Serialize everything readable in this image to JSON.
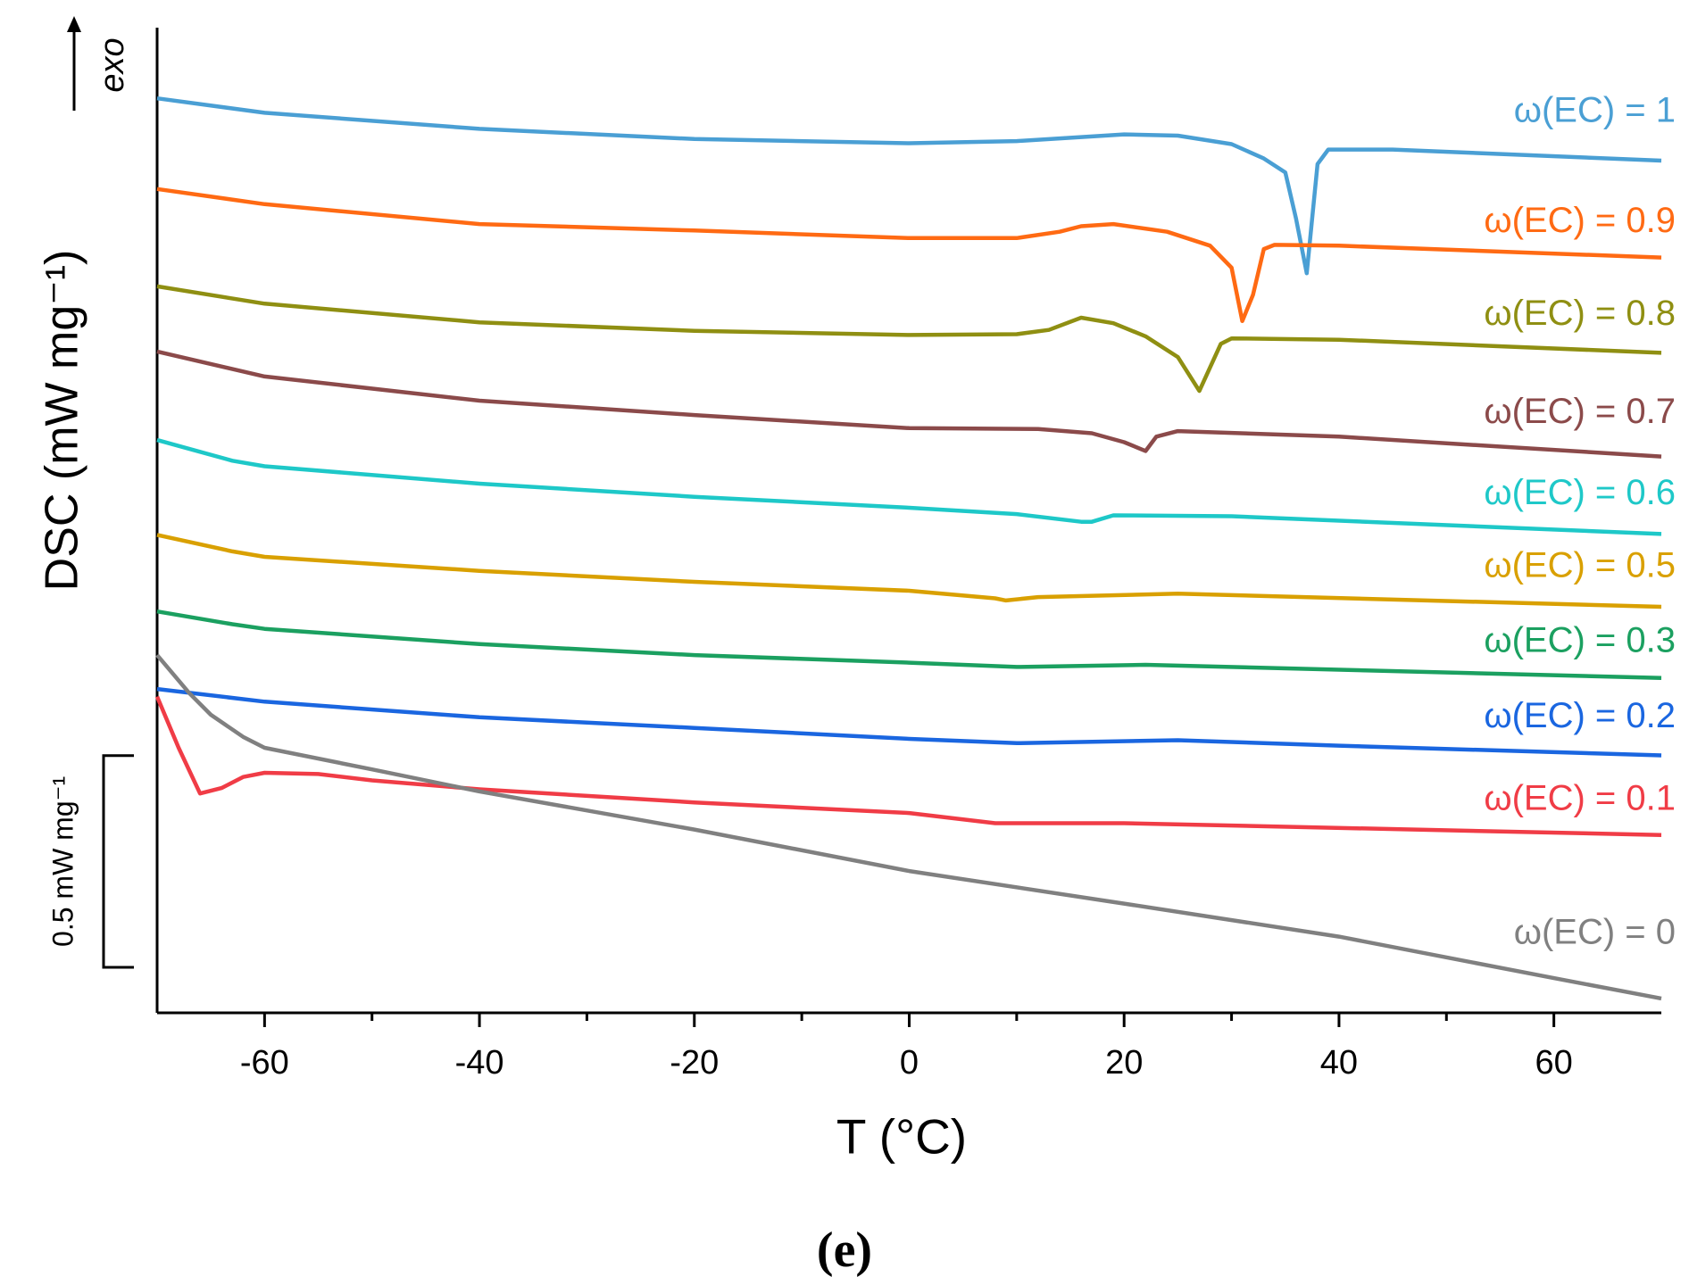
{
  "chart_data": {
    "type": "line",
    "y_label": "DSC (mW mg⁻¹)",
    "x_label": "T (°C)",
    "annotation": "exo",
    "caption": "(e)",
    "scale_bar": {
      "value": 0.5,
      "label": "0.5 mW mg⁻¹"
    },
    "xlim": [
      -70,
      70
    ],
    "xticks": [
      -60,
      -40,
      -20,
      0,
      20,
      40,
      60
    ],
    "xminorticks": [
      -50,
      -30,
      -10,
      10,
      30,
      50
    ],
    "ylim": [
      0,
      2.327
    ],
    "series": [
      {
        "name": "ω(EC) = 1",
        "color": "#4a9fd4",
        "x": [
          -70,
          -60,
          -40,
          -20,
          0,
          10,
          20,
          25,
          30,
          33,
          35,
          36,
          37,
          38,
          39,
          45,
          70
        ],
        "values": [
          2.16,
          2.126,
          2.088,
          2.064,
          2.054,
          2.059,
          2.075,
          2.072,
          2.052,
          2.018,
          1.985,
          1.876,
          1.747,
          2.005,
          2.039,
          2.039,
          2.013
        ]
      },
      {
        "name": "ω(EC) = 0.9",
        "color": "#ff6a13",
        "x": [
          -70,
          -60,
          -40,
          -20,
          0,
          10,
          14,
          16,
          19,
          24,
          28,
          30,
          31,
          32,
          33,
          34,
          40,
          70
        ],
        "values": [
          1.946,
          1.91,
          1.863,
          1.848,
          1.83,
          1.83,
          1.845,
          1.858,
          1.863,
          1.845,
          1.812,
          1.76,
          1.634,
          1.696,
          1.804,
          1.814,
          1.812,
          1.784
        ]
      },
      {
        "name": "ω(EC) = 0.8",
        "color": "#8f8f12",
        "x": [
          -70,
          -60,
          -40,
          -20,
          0,
          10,
          13,
          16,
          19,
          22,
          25,
          27,
          29,
          30,
          40,
          70
        ],
        "values": [
          1.716,
          1.675,
          1.631,
          1.611,
          1.601,
          1.603,
          1.613,
          1.642,
          1.629,
          1.598,
          1.549,
          1.469,
          1.58,
          1.593,
          1.59,
          1.559
        ]
      },
      {
        "name": "ω(EC) = 0.7",
        "color": "#8b4a4a",
        "x": [
          -70,
          -60,
          -40,
          -20,
          0,
          12,
          17,
          20,
          22,
          23,
          25,
          40,
          70
        ],
        "values": [
          1.562,
          1.503,
          1.446,
          1.412,
          1.381,
          1.379,
          1.369,
          1.348,
          1.327,
          1.361,
          1.374,
          1.361,
          1.314
        ]
      },
      {
        "name": "ω(EC) = 0.6",
        "color": "#1ec8c8",
        "x": [
          -70,
          -63,
          -60,
          -40,
          -20,
          0,
          10,
          16,
          17,
          19,
          30,
          70
        ],
        "values": [
          1.353,
          1.304,
          1.291,
          1.25,
          1.219,
          1.193,
          1.178,
          1.16,
          1.16,
          1.175,
          1.173,
          1.131
        ]
      },
      {
        "name": "ω(EC) = 0.5",
        "color": "#d9a000",
        "x": [
          -70,
          -63,
          -60,
          -40,
          -20,
          0,
          8,
          9,
          12,
          25,
          70
        ],
        "values": [
          1.129,
          1.09,
          1.077,
          1.044,
          1.018,
          0.997,
          0.979,
          0.974,
          0.982,
          0.99,
          0.959
        ]
      },
      {
        "name": "ω(EC) = 0.3",
        "color": "#1ba060",
        "x": [
          -70,
          -63,
          -60,
          -40,
          -20,
          0,
          10,
          22,
          70
        ],
        "values": [
          0.948,
          0.918,
          0.907,
          0.871,
          0.845,
          0.827,
          0.817,
          0.822,
          0.791
        ]
      },
      {
        "name": "ω(EC) = 0.2",
        "color": "#1a66e0",
        "x": [
          -70,
          -60,
          -40,
          -20,
          0,
          10,
          25,
          40,
          70
        ],
        "values": [
          0.765,
          0.735,
          0.698,
          0.673,
          0.647,
          0.637,
          0.644,
          0.631,
          0.608
        ]
      },
      {
        "name": "ω(EC) = 0.1",
        "color": "#f03c46",
        "x": [
          -70,
          -68,
          -66,
          -64,
          -62,
          -60,
          -55,
          -50,
          -40,
          -20,
          0,
          8,
          20,
          70
        ],
        "values": [
          0.747,
          0.626,
          0.518,
          0.531,
          0.557,
          0.567,
          0.564,
          0.549,
          0.528,
          0.497,
          0.472,
          0.448,
          0.448,
          0.42
        ]
      },
      {
        "name": "ω(EC) = 0",
        "color": "#808080",
        "x": [
          -70,
          -67,
          -65,
          -62,
          -60,
          -50,
          -40,
          -20,
          0,
          20,
          40,
          60,
          70
        ],
        "values": [
          0.845,
          0.755,
          0.704,
          0.652,
          0.626,
          0.575,
          0.523,
          0.433,
          0.335,
          0.258,
          0.18,
          0.082,
          0.034
        ]
      }
    ]
  }
}
